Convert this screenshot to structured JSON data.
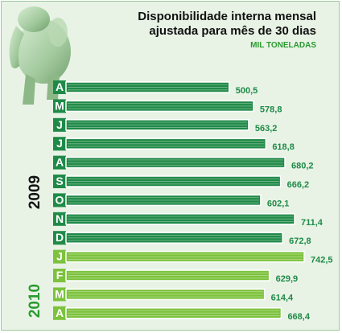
{
  "chart_data": {
    "type": "bar",
    "orientation": "horizontal",
    "title_lines": [
      "Disponibilidade interna mensal",
      "ajustada para mês de 30 dias"
    ],
    "unit": "MIL TONELADAS",
    "groups": [
      {
        "label": "2009",
        "color": "#111111"
      },
      {
        "label": "2010",
        "color": "#2a9a2e"
      }
    ],
    "categories": [
      "A",
      "M",
      "J",
      "J",
      "A",
      "S",
      "O",
      "N",
      "D",
      "J",
      "F",
      "M",
      "A"
    ],
    "value_labels": [
      "500,5",
      "578,8",
      "563,2",
      "618,8",
      "680,2",
      "666,2",
      "602,1",
      "711,4",
      "672,8",
      "742,5",
      "629,9",
      "614,4",
      "668,4"
    ],
    "values": [
      500.5,
      578.8,
      563.2,
      618.8,
      680.2,
      666.2,
      602.1,
      711.4,
      672.8,
      742.5,
      629.9,
      614.4,
      668.4
    ],
    "group_index": [
      0,
      0,
      0,
      0,
      0,
      0,
      0,
      0,
      0,
      1,
      1,
      1,
      1
    ],
    "grid": false,
    "colors": {
      "bar_2009": "#1f8a47",
      "bar_2010": "#7cc23c",
      "label_bg_2009": "#1f8a47",
      "label_bg_2010": "#7cc23c",
      "value_text": "#1f8a47",
      "background": "#e8f3e6"
    },
    "icon": "elephant-mascot-icon"
  }
}
